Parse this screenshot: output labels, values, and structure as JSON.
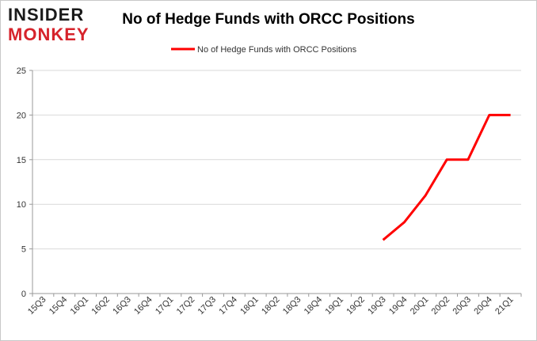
{
  "brand": {
    "line1": "INSIDER",
    "line2": "MONKEY"
  },
  "chart_data": {
    "type": "line",
    "title": "No of Hedge Funds with ORCC Positions",
    "xlabel": "",
    "ylabel": "",
    "categories": [
      "15Q3",
      "15Q4",
      "16Q1",
      "16Q2",
      "16Q3",
      "16Q4",
      "17Q1",
      "17Q2",
      "17Q3",
      "17Q4",
      "18Q1",
      "18Q2",
      "18Q3",
      "18Q4",
      "19Q1",
      "19Q2",
      "19Q3",
      "19Q4",
      "20Q1",
      "20Q2",
      "20Q3",
      "20Q4",
      "21Q1"
    ],
    "series": [
      {
        "name": "No of Hedge Funds with ORCC Positions",
        "color": "#ff0000",
        "values": [
          null,
          null,
          null,
          null,
          null,
          null,
          null,
          null,
          null,
          null,
          null,
          null,
          null,
          null,
          null,
          null,
          6,
          8,
          11,
          15,
          15,
          20,
          20
        ]
      }
    ],
    "ylim": [
      0,
      25
    ],
    "yticks": [
      "0",
      "5",
      "10",
      "15",
      "20",
      "25"
    ],
    "grid": "horizontal",
    "legend": "top-center"
  }
}
